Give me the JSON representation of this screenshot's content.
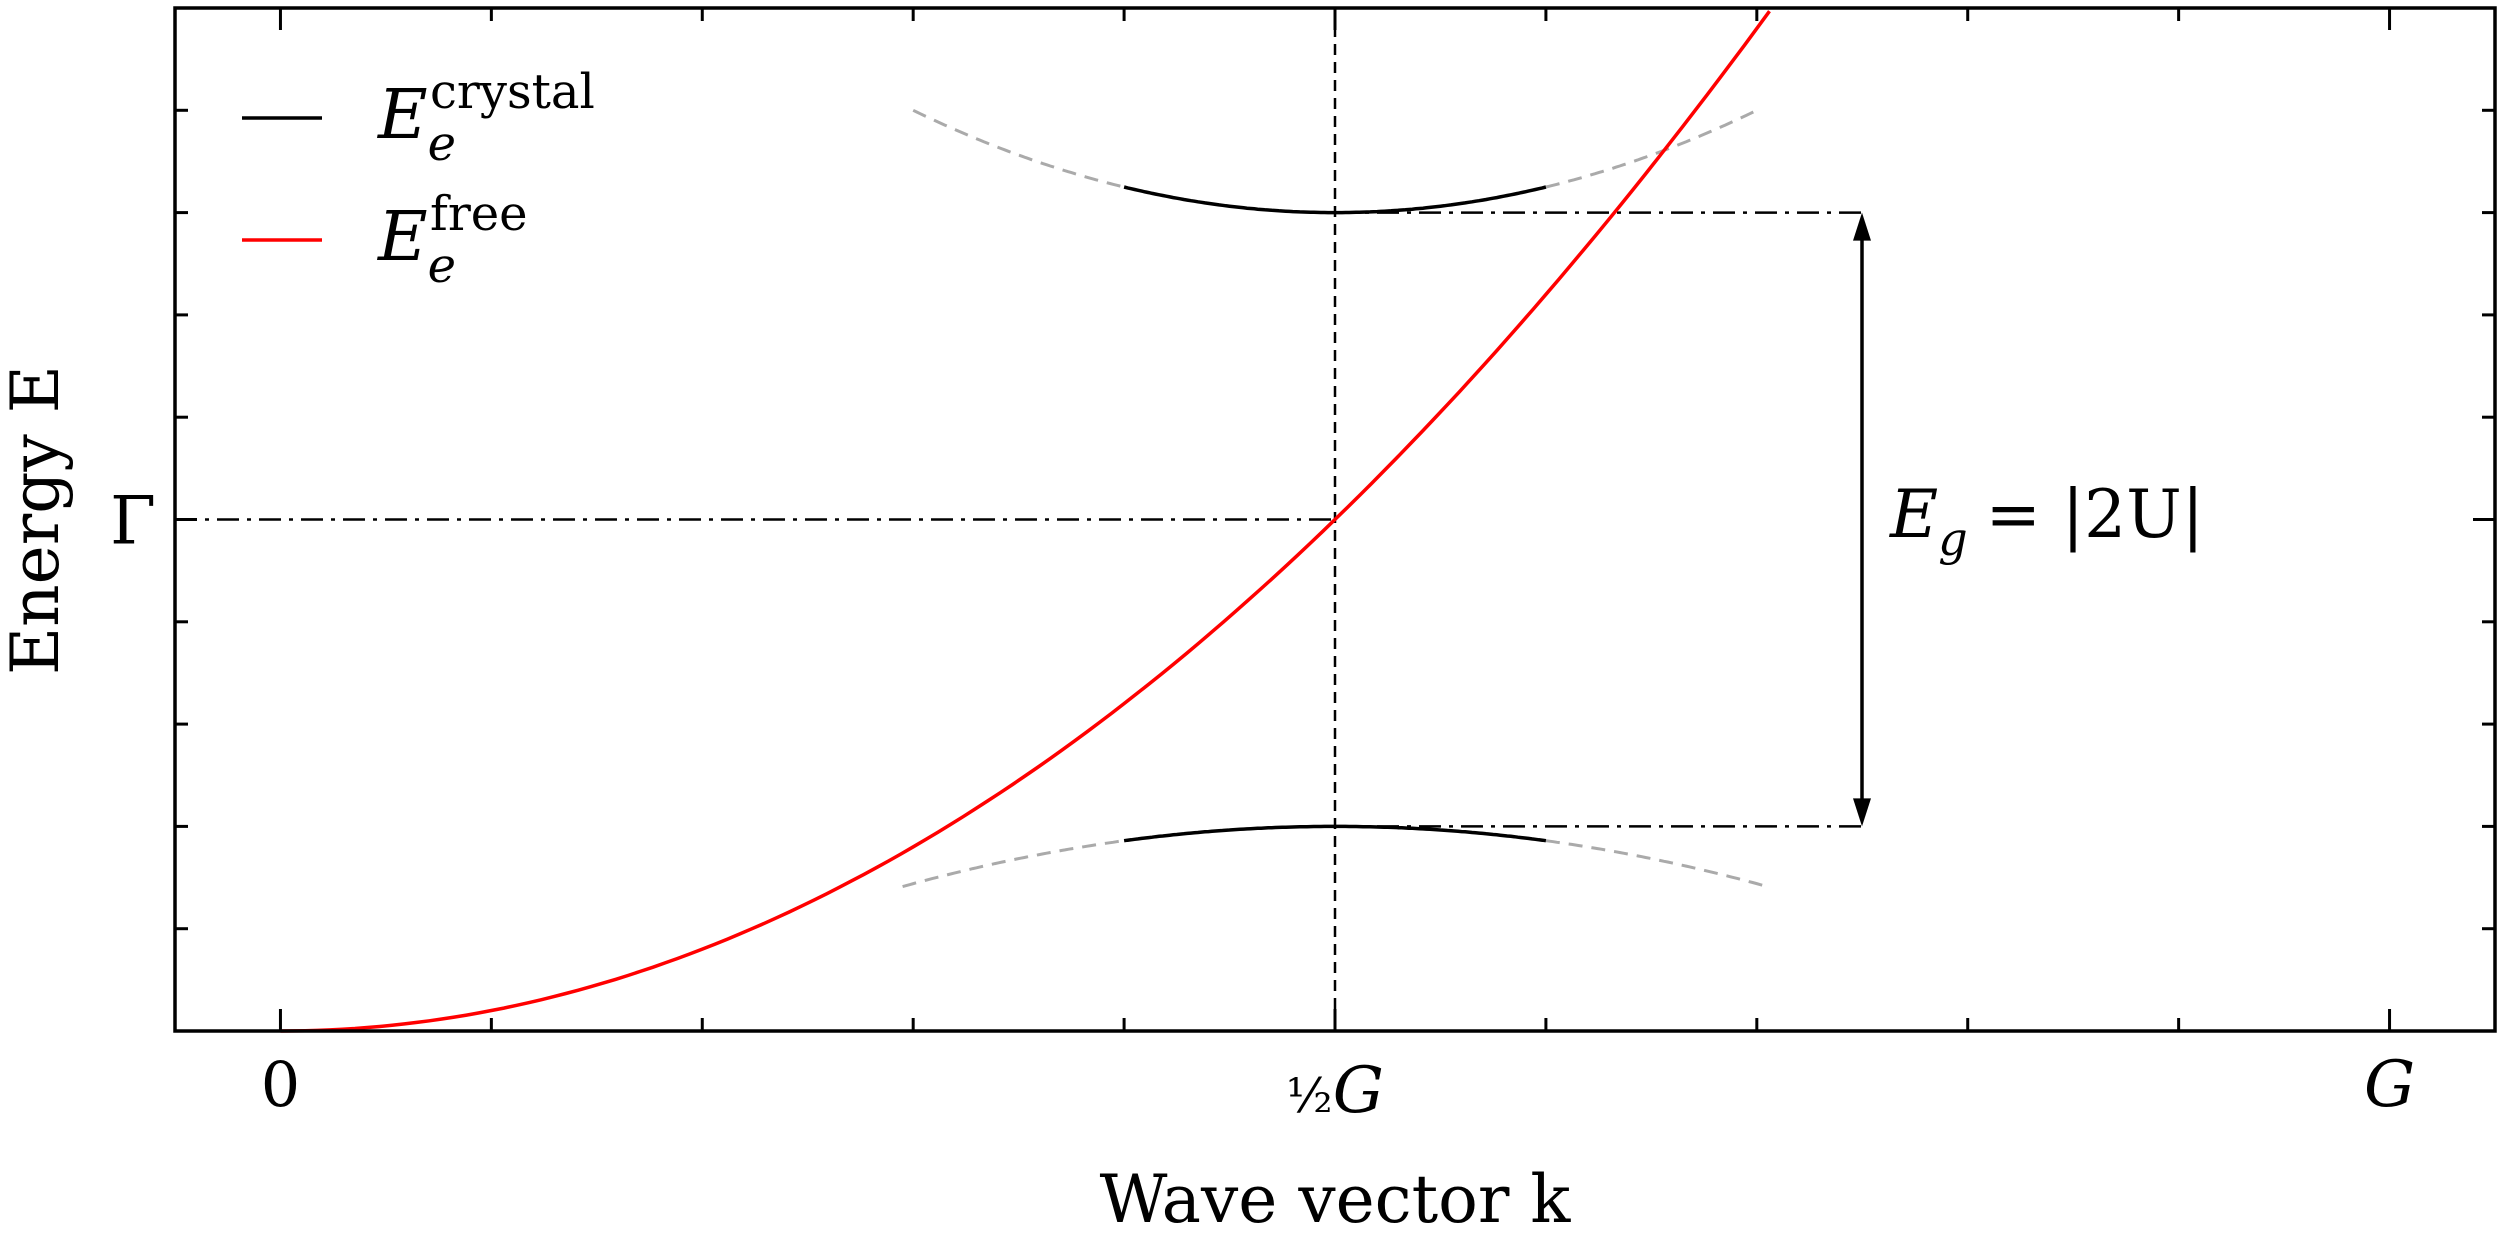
{
  "chart_data": {
    "type": "line",
    "title": "",
    "xlabel": "Wave vector k",
    "ylabel": "Energy E",
    "xlim": [
      -0.05,
      1.05
    ],
    "ylim": [
      0,
      2
    ],
    "x_ticks": [
      {
        "value": 0,
        "label": "0"
      },
      {
        "value": 0.5,
        "label": "½G"
      },
      {
        "value": 1,
        "label": "G"
      }
    ],
    "y_ticks": [
      {
        "value": 1,
        "label": "Γ"
      }
    ],
    "minor_x_ticks": [
      0.1,
      0.2,
      0.3,
      0.4,
      0.6,
      0.7,
      0.8,
      0.9
    ],
    "minor_y_ticks": [
      0.2,
      0.4,
      0.6,
      0.8,
      1.2,
      1.4,
      1.6,
      1.8
    ],
    "grid": false,
    "legend_position": "top-left",
    "legend": [
      {
        "series": "crystal",
        "base": "E",
        "sub": "e",
        "sup": "crystal",
        "color": "#000000"
      },
      {
        "series": "free",
        "base": "E",
        "sub": "e",
        "sup": "free",
        "color": "#ff0000"
      }
    ],
    "series": [
      {
        "name": "E_e^free",
        "color": "#ff0000",
        "style": "solid",
        "x": [
          0,
          0.1,
          0.2,
          0.3,
          0.4,
          0.5,
          0.6,
          0.7,
          0.706
        ],
        "y": [
          0,
          0.04,
          0.16,
          0.36,
          0.64,
          1.0,
          1.44,
          1.96,
          2.0
        ]
      },
      {
        "name": "E_e^crystal upper",
        "color": "#000000",
        "style": "solid",
        "x": [
          0.4,
          0.45,
          0.5,
          0.55,
          0.6
        ],
        "y": [
          1.8,
          1.66,
          1.6,
          1.66,
          1.8
        ]
      },
      {
        "name": "E_e^crystal lower",
        "color": "#000000",
        "style": "solid",
        "x": [
          0.4,
          0.45,
          0.5,
          0.55,
          0.6
        ],
        "y": [
          0.3,
          0.37,
          0.4,
          0.37,
          0.3
        ]
      }
    ],
    "annotations": {
      "gap_label": {
        "base": "E",
        "sub": "g",
        "rhs": "= |2U|"
      },
      "gap_top": 1.6,
      "gap_bottom": 0.4,
      "midpoint": {
        "x": 0.5,
        "y": 1.0
      }
    }
  }
}
